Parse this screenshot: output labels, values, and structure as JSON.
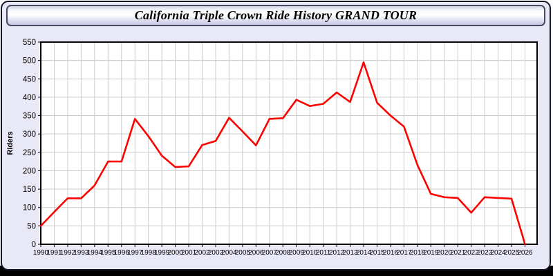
{
  "window": {
    "title": "California Triple Crown Ride History GRAND TOUR"
  },
  "chart_data": {
    "type": "line",
    "title": "California Triple Crown Ride History GRAND TOUR",
    "xlabel": "",
    "ylabel": "Riders",
    "x": [
      1990,
      1991,
      1992,
      1993,
      1994,
      1995,
      1996,
      1997,
      1998,
      1999,
      2000,
      2001,
      2002,
      2003,
      2004,
      2005,
      2006,
      2007,
      2008,
      2009,
      2010,
      2011,
      2012,
      2013,
      2014,
      2015,
      2016,
      2017,
      2018,
      2019,
      2020,
      2021,
      2022,
      2023,
      2024,
      2025,
      2026
    ],
    "series": [
      {
        "name": "Riders",
        "values": [
          50,
          88,
          125,
          125,
          160,
          225,
          225,
          341,
          294,
          241,
          210,
          212,
          270,
          281,
          344,
          307,
          269,
          341,
          343,
          393,
          376,
          382,
          413,
          387,
          495,
          385,
          350,
          320,
          216,
          137,
          128,
          126,
          86,
          128,
          126,
          124,
          0
        ]
      }
    ],
    "ylim": [
      0,
      550
    ],
    "ytick_step": 50,
    "grid": true,
    "legend_position": "none",
    "line_color": "#ff0000",
    "grid_color": "#cccccc",
    "axis_color": "#000000",
    "plot_background": "#ffffff"
  },
  "colors": {
    "window_background": "#e8e8f6",
    "frame_border": "#15152a",
    "title_bar_gradient_bottom": "#c5c5e4",
    "bottom_strip": "#000000",
    "series_red": "#ff0000"
  }
}
